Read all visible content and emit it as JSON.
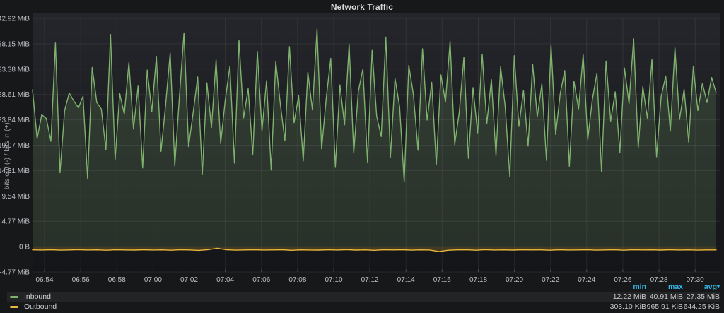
{
  "panel": {
    "title": "Network Traffic"
  },
  "chart_data": {
    "type": "line",
    "title": "Network Traffic",
    "ylabel": "bits out (-) / bits in (+)",
    "xlabel": "",
    "grid": true,
    "legend_position": "bottom",
    "ylim": [
      -4.77,
      42.92
    ],
    "y_ticks": [
      {
        "value": 42.92,
        "label": "42.92 MiB"
      },
      {
        "value": 38.15,
        "label": "38.15 MiB"
      },
      {
        "value": 33.38,
        "label": "33.38 MiB"
      },
      {
        "value": 28.61,
        "label": "28.61 MiB"
      },
      {
        "value": 23.84,
        "label": "23.84 MiB"
      },
      {
        "value": 19.07,
        "label": "19.07 MiB"
      },
      {
        "value": 14.31,
        "label": "14.31 MiB"
      },
      {
        "value": 9.54,
        "label": "9.54 MiB"
      },
      {
        "value": 4.77,
        "label": "4.77 MiB"
      },
      {
        "value": 0,
        "label": "0 B"
      },
      {
        "value": -4.77,
        "label": "-4.77 MiB"
      }
    ],
    "x_ticks": [
      "06:54",
      "06:56",
      "06:58",
      "07:00",
      "07:02",
      "07:04",
      "07:06",
      "07:08",
      "07:10",
      "07:12",
      "07:14",
      "07:16",
      "07:18",
      "07:20",
      "07:22",
      "07:24",
      "07:26",
      "07:28",
      "07:30"
    ],
    "series": [
      {
        "name": "Inbound",
        "color": "#7EB26D",
        "fill_opacity": 0.18,
        "unit": "MiB",
        "values": [
          29.5,
          20.3,
          24.8,
          24.1,
          19.8,
          38.3,
          13.9,
          25.6,
          28.9,
          27.4,
          26.1,
          28.3,
          12.8,
          33.7,
          27.1,
          25.9,
          18.2,
          39.9,
          16.4,
          28.8,
          24.9,
          34.6,
          22.1,
          30.2,
          14.8,
          33.2,
          25.4,
          35.8,
          17.9,
          26.6,
          36.4,
          15.2,
          28.1,
          40.2,
          18.8,
          25.1,
          31.9,
          13.6,
          30.8,
          22.4,
          35.1,
          19.4,
          27.6,
          33.9,
          15.7,
          38.8,
          24.2,
          29.7,
          17.3,
          36.7,
          21.8,
          31.2,
          14.4,
          34.8,
          26.8,
          19.9,
          37.6,
          23.3,
          28.4,
          16.1,
          32.8,
          25.7,
          40.9,
          18.4,
          27.9,
          35.4,
          14.9,
          30.4,
          22.9,
          38.1,
          17.6,
          29.2,
          33.4,
          15.9,
          36.9,
          24.6,
          20.7,
          39.4,
          16.8,
          31.6,
          26.3,
          12.2,
          34.1,
          28.6,
          18.1,
          37.2,
          23.8,
          30.9,
          15.4,
          32.3,
          27.2,
          38.6,
          19.2,
          25.3,
          35.6,
          16.6,
          29.9,
          21.4,
          36.2,
          23.1,
          31.4,
          17.1,
          33.8,
          26.4,
          13.2,
          35.9,
          22.6,
          29.4,
          18.9,
          34.3,
          24.4,
          30.6,
          16.2,
          37.9,
          21.1,
          28.7,
          33.1,
          15.1,
          31.1,
          25.9,
          36.1,
          20.1,
          27.7,
          32.6,
          14.1,
          34.9,
          23.6,
          29.1,
          17.7,
          33.6,
          26.9,
          39.1,
          18.6,
          30.1,
          24.1,
          35.2,
          16.9,
          28.2,
          32.1,
          21.7,
          37.4,
          23.9,
          29.6,
          19.6,
          33.9,
          25.6,
          30.7,
          27.1,
          31.8,
          28.9
        ]
      },
      {
        "name": "Outbound",
        "color": "#EAB839",
        "fill_opacity": 0.22,
        "unit": "KiB",
        "invert": true,
        "divisor": 1024,
        "values": [
          620,
          650,
          610,
          680,
          640,
          590,
          660,
          630,
          700,
          615,
          645,
          670,
          600,
          655,
          625,
          690,
          610,
          640,
          720,
          580,
          310,
          615,
          685,
          635,
          605,
          660,
          640,
          595,
          710,
          620,
          648,
          670,
          612,
          655,
          588,
          665,
          630,
          702,
          618,
          642,
          595,
          675,
          625,
          650,
          950,
          690,
          633,
          615,
          700,
          586,
          652,
          628,
          668,
          605,
          645,
          622,
          688,
          596,
          658,
          636,
          610,
          676,
          640,
          618,
          695,
          603,
          647,
          630,
          665,
          612,
          655,
          625,
          680,
          635,
          644
        ]
      }
    ]
  },
  "legend": {
    "stats_headers": [
      "min",
      "max",
      "avg"
    ],
    "sort_indicator": "▾",
    "rows": [
      {
        "label": "Inbound",
        "color": "#7EB26D",
        "min": "12.22 MiB",
        "max": "40.91 MiB",
        "avg": "27.35 MiB",
        "highlighted": true
      },
      {
        "label": "Outbound",
        "color": "#EAB839",
        "min": "303.10 KiB",
        "max": "965.91 KiB",
        "avg": "644.25 KiB",
        "highlighted": false
      }
    ]
  },
  "colors": {
    "background": "#17181a",
    "plot_top": "#25262b",
    "plot_bottom": "#141518",
    "grid": "rgba(255,255,255,0.07)",
    "tick_text": "#bdc0c4",
    "stat_header": "#33b5e5",
    "title_text": "#d8d9da"
  }
}
